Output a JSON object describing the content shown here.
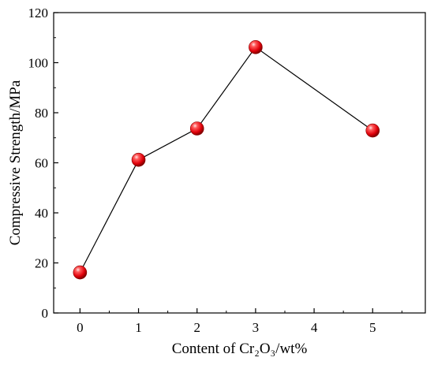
{
  "chart_data": {
    "type": "line",
    "title": "",
    "xlabel": "Content of Cr₂O₃/wt%",
    "ylabel": "Compressive Strength/MPa",
    "xlim": [
      -0.45,
      5.9
    ],
    "ylim": [
      0,
      120
    ],
    "xticks": [
      0,
      1,
      2,
      3,
      4,
      5
    ],
    "yticks": [
      0,
      20,
      40,
      60,
      80,
      100,
      120
    ],
    "grid": false,
    "legend": "none",
    "series": [
      {
        "x": [
          0,
          1,
          2,
          3,
          5
        ],
        "y": [
          16.2,
          61.2,
          73.7,
          106.2,
          72.9
        ]
      }
    ],
    "colors": {
      "marker": "#e8000b",
      "line": "#000000",
      "axis": "#000000"
    },
    "marker_shape": "sphere"
  }
}
